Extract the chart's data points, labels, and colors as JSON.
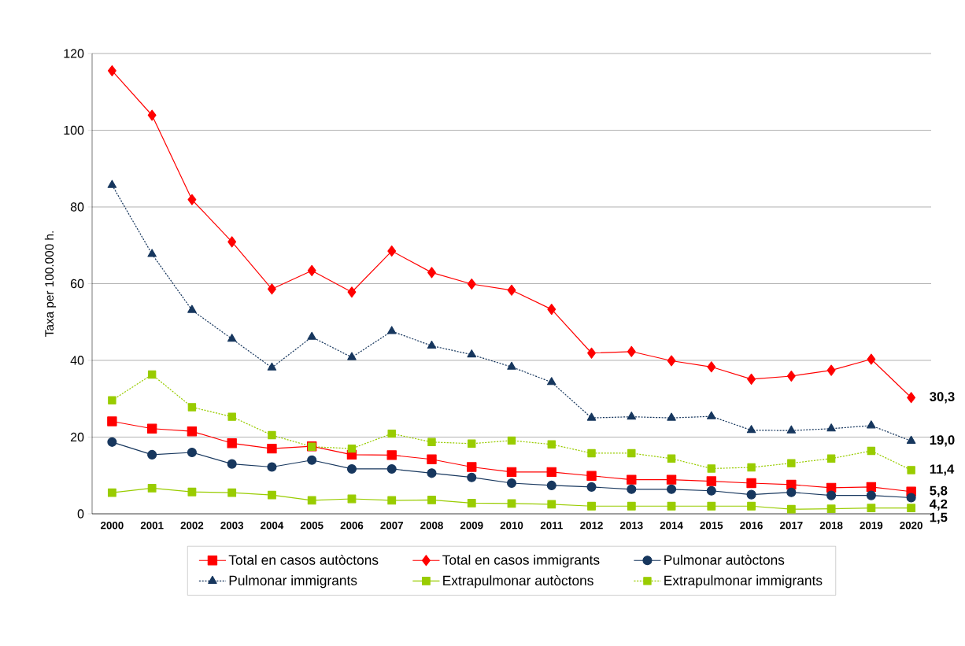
{
  "chart_data": {
    "type": "line",
    "ylabel": "Taxa per 100.000 h.",
    "categories": [
      "2000",
      "2001",
      "2002",
      "2003",
      "2004",
      "2005",
      "2006",
      "2007",
      "2008",
      "2009",
      "2010",
      "2011",
      "2012",
      "2013",
      "2014",
      "2015",
      "2016",
      "2017",
      "2018",
      "2019",
      "2020"
    ],
    "ylim": [
      0,
      120
    ],
    "yticks": [
      0,
      20,
      40,
      60,
      80,
      100,
      120
    ],
    "grid": "y",
    "legend": "bottom",
    "series": [
      {
        "name": "Total en casos autòctons",
        "color": "#ff0000",
        "marker": "square",
        "line_style": "solid",
        "values": [
          24.1,
          22.2,
          21.5,
          18.4,
          17.0,
          17.6,
          15.4,
          15.3,
          14.2,
          12.2,
          10.9,
          10.9,
          9.9,
          8.9,
          8.9,
          8.5,
          8.0,
          7.6,
          6.8,
          7.0,
          5.8
        ],
        "value_labels": [
          null,
          null,
          null,
          null,
          null,
          null,
          null,
          null,
          null,
          null,
          null,
          null,
          null,
          null,
          null,
          null,
          null,
          null,
          null,
          null,
          "5,8"
        ]
      },
      {
        "name": "Total en casos immigrants",
        "color": "#ff0000",
        "marker": "diamond",
        "line_style": "solid",
        "values": [
          115.5,
          103.9,
          81.9,
          70.9,
          58.6,
          63.4,
          57.8,
          68.5,
          62.9,
          59.9,
          58.3,
          53.3,
          41.9,
          42.3,
          39.9,
          38.3,
          35.1,
          35.9,
          37.4,
          40.3,
          30.3
        ],
        "value_labels": [
          null,
          null,
          null,
          null,
          null,
          null,
          null,
          null,
          null,
          null,
          null,
          null,
          null,
          null,
          null,
          null,
          null,
          null,
          null,
          null,
          "30,3"
        ]
      },
      {
        "name": "Pulmonar autòctons",
        "color": "#17375e",
        "marker": "circle",
        "line_style": "solid",
        "values": [
          18.7,
          15.4,
          16.0,
          13.0,
          12.2,
          14.0,
          11.7,
          11.7,
          10.6,
          9.5,
          8.0,
          7.4,
          7.0,
          6.4,
          6.4,
          6.0,
          5.0,
          5.6,
          4.8,
          4.8,
          4.2
        ],
        "value_labels": [
          null,
          null,
          null,
          null,
          null,
          null,
          null,
          null,
          null,
          null,
          null,
          null,
          null,
          null,
          null,
          null,
          null,
          null,
          null,
          null,
          "4,2"
        ]
      },
      {
        "name": "Pulmonar immigrants",
        "color": "#17375e",
        "marker": "triangle",
        "line_style": "dotted",
        "values": [
          85.7,
          67.7,
          53.1,
          45.6,
          38.1,
          46.1,
          40.8,
          47.6,
          43.8,
          41.5,
          38.3,
          34.3,
          25.0,
          25.3,
          25.0,
          25.4,
          21.8,
          21.7,
          22.2,
          23.0,
          19.0
        ],
        "value_labels": [
          null,
          null,
          null,
          null,
          null,
          null,
          null,
          null,
          null,
          null,
          null,
          null,
          null,
          null,
          null,
          null,
          null,
          null,
          null,
          null,
          "19,0"
        ]
      },
      {
        "name": "Extrapulmonar autòctons",
        "color": "#99cc00",
        "marker": "square",
        "line_style": "solid",
        "values": [
          5.5,
          6.7,
          5.7,
          5.5,
          4.9,
          3.5,
          3.9,
          3.5,
          3.6,
          2.8,
          2.7,
          2.5,
          2.0,
          2.0,
          2.0,
          2.0,
          2.0,
          1.2,
          1.3,
          1.5,
          1.5
        ],
        "value_labels": [
          null,
          null,
          null,
          null,
          null,
          null,
          null,
          null,
          null,
          null,
          null,
          null,
          null,
          null,
          null,
          null,
          null,
          null,
          null,
          null,
          "1,5"
        ]
      },
      {
        "name": "Extrapulmonar immigrants",
        "color": "#99cc00",
        "marker": "square",
        "line_style": "dotted",
        "values": [
          29.6,
          36.3,
          27.8,
          25.3,
          20.5,
          17.5,
          17.0,
          20.9,
          18.7,
          18.3,
          19.1,
          18.1,
          15.8,
          15.8,
          14.4,
          11.8,
          12.1,
          13.2,
          14.4,
          16.4,
          11.4
        ],
        "value_labels": [
          null,
          null,
          null,
          null,
          null,
          null,
          null,
          null,
          null,
          null,
          null,
          null,
          null,
          null,
          null,
          null,
          null,
          null,
          null,
          null,
          "11,4"
        ]
      }
    ]
  }
}
